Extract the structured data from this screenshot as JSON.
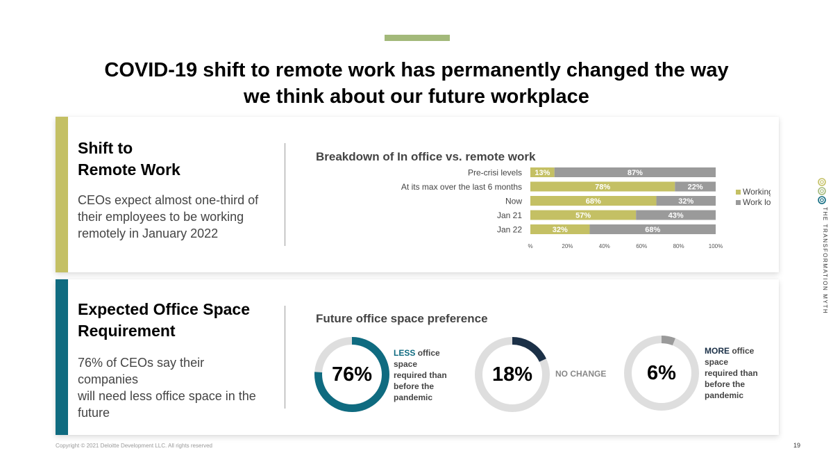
{
  "title": {
    "line1": "COVID-19 shift to remote work has permanently  changed the way",
    "line2": "we think about our future workplace"
  },
  "colors": {
    "accent_green": "#a3b97a",
    "olive": "#c4c064",
    "teal": "#0f6b80",
    "gray": "#9a9a9a",
    "navy": "#1b3047",
    "light_gray": "#dedede"
  },
  "section1": {
    "heading_line1": "Shift to",
    "heading_line2": "Remote Work",
    "text_line1": "CEOs expect almost one-third of",
    "text_line2": "their employees to be working",
    "text_line3": "remotely in January 2022"
  },
  "section2": {
    "heading_line1": "Expected Office Space",
    "heading_line2": "Requirement",
    "text_line1": "76% of CEOs say their companies",
    "text_line2": "will need less office space in the",
    "text_line3": "future",
    "chart_title": "Future office space preference",
    "donuts": [
      {
        "value": "76%",
        "label_em": "LESS",
        "label_lines": [
          "office",
          "space",
          "required than",
          "before the",
          "pandemic"
        ]
      },
      {
        "value": "18%",
        "label": "NO CHANGE"
      },
      {
        "value": "6%",
        "label_em": "MORE",
        "label_lines": [
          "office",
          "space",
          "required than",
          "before the",
          "pandemic"
        ]
      }
    ]
  },
  "chart_data": [
    {
      "type": "bar",
      "orientation": "horizontal",
      "stacked": true,
      "title": "Breakdown of In office vs. remote work",
      "categories": [
        "Pre-crisi levels",
        "At its max over the last 6 months",
        "Now",
        "Jan 21",
        "Jan 22"
      ],
      "series": [
        {
          "name": "Working remotely",
          "values": [
            13,
            78,
            68,
            57,
            32
          ],
          "labels": [
            "13%",
            "78%",
            "68%",
            "57%",
            "32%"
          ],
          "color": "#c4c064"
        },
        {
          "name": "Work location",
          "values": [
            87,
            22,
            32,
            43,
            68
          ],
          "labels": [
            "87%",
            "22%",
            "32%",
            "43%",
            "68%"
          ],
          "color": "#9a9a9a"
        }
      ],
      "xlim": [
        0,
        100
      ],
      "xticks": [
        "%",
        "20%",
        "40%",
        "60%",
        "80%",
        "100%"
      ],
      "legend": "right"
    },
    {
      "type": "pie",
      "variant": "donut",
      "title": "Future office space preference",
      "charts": [
        {
          "name": "LESS",
          "value": 76,
          "label": "76%",
          "color": "#0f6b80"
        },
        {
          "name": "NO CHANGE",
          "value": 18,
          "label": "18%",
          "color": "#1b3047"
        },
        {
          "name": "MORE",
          "value": 6,
          "label": "6%",
          "color": "#9a9a9a"
        }
      ]
    }
  ],
  "side_brand": "THE TRANSFORMATION MYTH",
  "footer": {
    "copyright": "Copyright © 2021 Deloitte Development LLC. All rights reserved",
    "page": "19"
  }
}
